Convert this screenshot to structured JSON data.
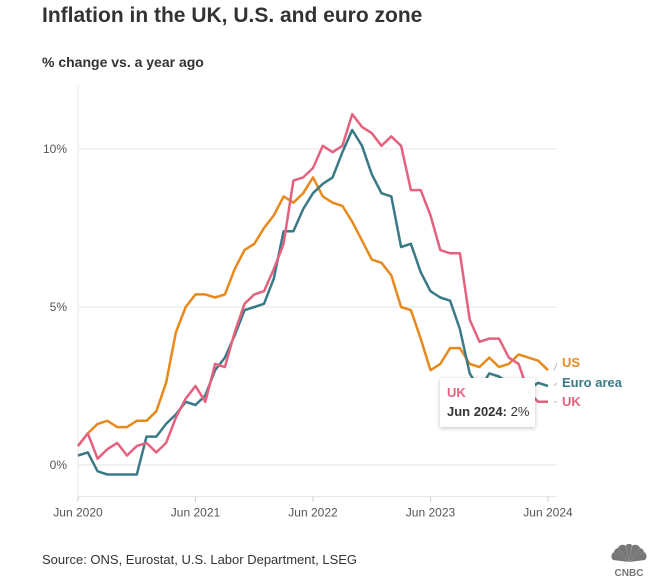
{
  "title": "Inflation in the UK, U.S. and euro zone",
  "subtitle": "% change vs. a year ago",
  "source": "Source: ONS, Eurostat, U.S. Labor Department, LSEG",
  "logo_text": "CNBC",
  "tooltip": {
    "series": "UK",
    "date": "Jun 2024:",
    "value": "2%"
  },
  "chart_data": {
    "type": "line",
    "title": "Inflation in the UK, U.S. and euro zone",
    "ylabel": "% change vs. a year ago",
    "x_start": "Jun 2020",
    "x_end": "Jun 2024",
    "x_frequency": "monthly",
    "x_ticks": [
      "Jun 2020",
      "Jun 2021",
      "Jun 2022",
      "Jun 2023",
      "Jun 2024"
    ],
    "y_ticks": [
      {
        "value": 0,
        "label": "0%"
      },
      {
        "value": 5,
        "label": "5%"
      },
      {
        "value": 10,
        "label": "10%"
      }
    ],
    "ylim": [
      -1,
      12
    ],
    "grid": "horizontal",
    "legend": "direct labels at right end",
    "series": [
      {
        "name": "US",
        "color": "#E8891D",
        "values": [
          0.6,
          1.0,
          1.3,
          1.4,
          1.2,
          1.2,
          1.4,
          1.4,
          1.7,
          2.6,
          4.2,
          5.0,
          5.4,
          5.4,
          5.3,
          5.4,
          6.2,
          6.8,
          7.0,
          7.5,
          7.9,
          8.5,
          8.3,
          8.6,
          9.1,
          8.5,
          8.3,
          8.2,
          7.7,
          7.1,
          6.5,
          6.4,
          6.0,
          5.0,
          4.9,
          4.0,
          3.0,
          3.2,
          3.7,
          3.7,
          3.2,
          3.1,
          3.4,
          3.1,
          3.2,
          3.5,
          3.4,
          3.3,
          3.0
        ]
      },
      {
        "name": "Euro area",
        "color": "#3A7A87",
        "values": [
          0.3,
          0.4,
          -0.2,
          -0.3,
          -0.3,
          -0.3,
          -0.3,
          0.9,
          0.9,
          1.3,
          1.6,
          2.0,
          1.9,
          2.2,
          3.0,
          3.4,
          4.1,
          4.9,
          5.0,
          5.1,
          5.9,
          7.4,
          7.4,
          8.1,
          8.6,
          8.9,
          9.1,
          9.9,
          10.6,
          10.1,
          9.2,
          8.6,
          8.5,
          6.9,
          7.0,
          6.1,
          5.5,
          5.3,
          5.2,
          4.3,
          2.9,
          2.4,
          2.9,
          2.8,
          2.6,
          2.4,
          2.4,
          2.6,
          2.5
        ]
      },
      {
        "name": "UK",
        "color": "#E5627F",
        "values": [
          0.6,
          1.0,
          0.2,
          0.5,
          0.7,
          0.3,
          0.6,
          0.7,
          0.4,
          0.7,
          1.5,
          2.1,
          2.5,
          2.0,
          3.2,
          3.1,
          4.2,
          5.1,
          5.4,
          5.5,
          6.2,
          7.0,
          9.0,
          9.1,
          9.4,
          10.1,
          9.9,
          10.1,
          11.1,
          10.7,
          10.5,
          10.1,
          10.4,
          10.1,
          8.7,
          8.7,
          7.9,
          6.8,
          6.7,
          6.7,
          4.6,
          3.9,
          4.0,
          4.0,
          3.4,
          3.2,
          2.3,
          2.0,
          2.0
        ]
      }
    ]
  }
}
